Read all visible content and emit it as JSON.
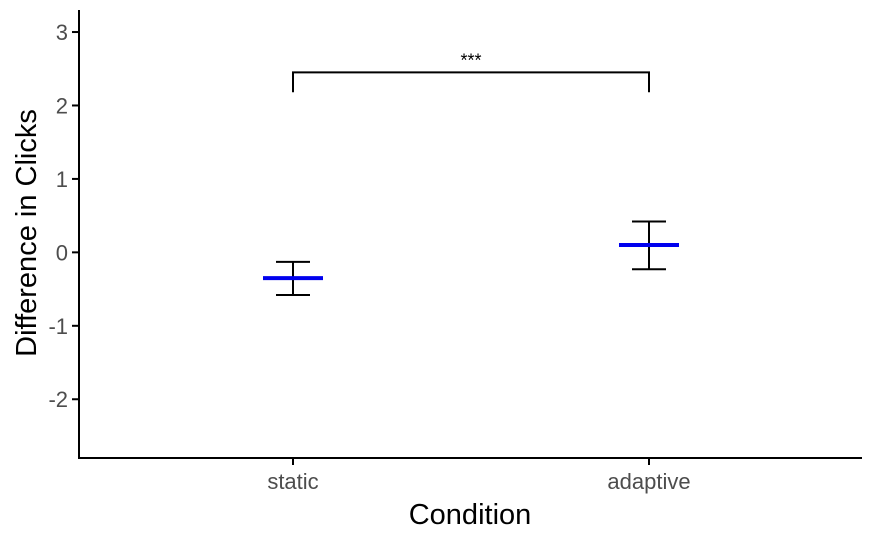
{
  "chart_data": {
    "type": "errorbar",
    "title": "",
    "xlabel": "Condition",
    "ylabel": "Difference in Clicks",
    "categories": [
      "static",
      "adaptive"
    ],
    "series": [
      {
        "values": [
          -0.35,
          0.1
        ],
        "lower": [
          -0.58,
          -0.23
        ],
        "upper": [
          -0.13,
          0.42
        ]
      }
    ],
    "ylim": [
      -2.8,
      3.3
    ],
    "yticks": [
      "-2",
      "-1",
      "0",
      "1",
      "2",
      "3"
    ],
    "grid": false,
    "legend": "none",
    "colors": {
      "mean": "#0000ee",
      "errorbar": "#000000",
      "axis": "#000000"
    },
    "annotations": [
      {
        "type": "significance-bracket",
        "from": "static",
        "to": "adaptive",
        "y": 2.45,
        "drop": 2.18,
        "text": "***"
      }
    ]
  }
}
